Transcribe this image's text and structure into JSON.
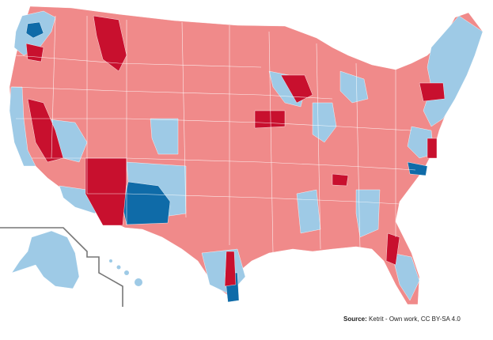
{
  "map": {
    "subject": "United States congressional districts by party",
    "colors": {
      "rep_lean": "#f08a8a",
      "rep_strong": "#c8102e",
      "dem_lean": "#9ecae6",
      "dem_strong": "#0f6ba8",
      "border": "#ffffff",
      "inset_frame": "#777777"
    }
  },
  "source": {
    "label": "Source:",
    "text": "Ketrit - Own work, CC BY-SA 4.0"
  }
}
